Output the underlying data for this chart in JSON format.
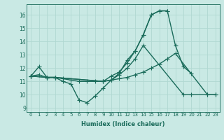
{
  "xlabel": "Humidex (Indice chaleur)",
  "xlim": [
    -0.5,
    23.5
  ],
  "ylim": [
    8.7,
    16.8
  ],
  "yticks": [
    9,
    10,
    11,
    12,
    13,
    14,
    15,
    16
  ],
  "xticks": [
    0,
    1,
    2,
    3,
    4,
    5,
    6,
    7,
    8,
    9,
    10,
    11,
    12,
    13,
    14,
    15,
    16,
    17,
    18,
    19,
    20,
    21,
    22,
    23
  ],
  "bg_color": "#c9e9e4",
  "grid_color": "#b0d8d2",
  "line_color": "#1a6b5a",
  "line_width": 1.0,
  "marker": "+",
  "marker_size": 4,
  "lines_x": [
    [
      0,
      1,
      2,
      3,
      4,
      5,
      6,
      7,
      8,
      9,
      10,
      11,
      12,
      13,
      14,
      15,
      16,
      17,
      18,
      19,
      20
    ],
    [
      0,
      1,
      2,
      3,
      4,
      5,
      6,
      7,
      8,
      9,
      10,
      11,
      12,
      13,
      14,
      15,
      16,
      17,
      18,
      22,
      23
    ],
    [
      0,
      2,
      3,
      9,
      10,
      11,
      12,
      13,
      14,
      15,
      16,
      17
    ],
    [
      0,
      2,
      3,
      9,
      10,
      11,
      12,
      13,
      14,
      19,
      20,
      22,
      23
    ]
  ],
  "lines_y": [
    [
      11.4,
      12.1,
      11.3,
      11.3,
      11.0,
      10.8,
      9.6,
      9.4,
      9.9,
      10.5,
      11.1,
      11.6,
      12.6,
      13.3,
      14.5,
      16.0,
      16.3,
      16.3,
      13.7,
      12.1,
      11.6
    ],
    [
      11.4,
      11.5,
      11.3,
      11.3,
      11.2,
      11.1,
      11.0,
      11.0,
      11.0,
      11.0,
      11.1,
      11.2,
      11.3,
      11.5,
      11.7,
      12.0,
      12.3,
      12.7,
      13.1,
      10.0,
      10.0
    ],
    [
      11.4,
      11.3,
      11.3,
      11.0,
      11.4,
      11.7,
      12.4,
      13.3,
      14.5,
      16.0,
      16.3,
      16.3
    ],
    [
      11.4,
      11.3,
      11.3,
      11.0,
      11.1,
      11.5,
      12.0,
      12.7,
      13.7,
      10.0,
      10.0,
      10.0,
      10.0
    ]
  ]
}
